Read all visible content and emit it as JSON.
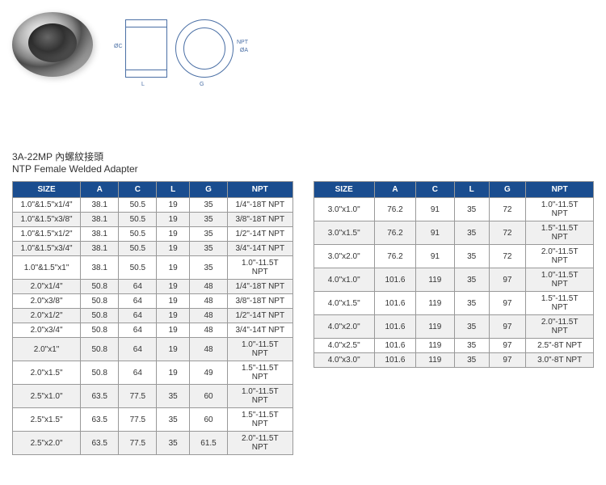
{
  "title_cn": "3A-22MP 內螺紋接頭",
  "title_en": "NTP Female Welded Adapter",
  "columns": [
    "SIZE",
    "A",
    "C",
    "L",
    "G",
    "NPT"
  ],
  "table1": {
    "rows": [
      [
        "1.0\"&1.5\"x1/4\"",
        "38.1",
        "50.5",
        "19",
        "35",
        "1/4\"-18T NPT"
      ],
      [
        "1.0\"&1.5\"x3/8\"",
        "38.1",
        "50.5",
        "19",
        "35",
        "3/8\"-18T NPT"
      ],
      [
        "1.0\"&1.5\"x1/2\"",
        "38.1",
        "50.5",
        "19",
        "35",
        "1/2\"-14T NPT"
      ],
      [
        "1.0\"&1.5\"x3/4\"",
        "38.1",
        "50.5",
        "19",
        "35",
        "3/4\"-14T NPT"
      ],
      [
        "1.0\"&1.5\"x1\"",
        "38.1",
        "50.5",
        "19",
        "35",
        "1.0\"-11.5T NPT"
      ],
      [
        "2.0\"x1/4\"",
        "50.8",
        "64",
        "19",
        "48",
        "1/4\"-18T NPT"
      ],
      [
        "2.0\"x3/8\"",
        "50.8",
        "64",
        "19",
        "48",
        "3/8\"-18T NPT"
      ],
      [
        "2.0\"x1/2\"",
        "50.8",
        "64",
        "19",
        "48",
        "1/2\"-14T NPT"
      ],
      [
        "2.0\"x3/4\"",
        "50.8",
        "64",
        "19",
        "48",
        "3/4\"-14T NPT"
      ],
      [
        "2.0\"x1\"",
        "50.8",
        "64",
        "19",
        "48",
        "1.0\"-11.5T NPT"
      ],
      [
        "2.0\"x1.5\"",
        "50.8",
        "64",
        "19",
        "49",
        "1.5\"-11.5T NPT"
      ],
      [
        "2.5\"x1.0\"",
        "63.5",
        "77.5",
        "35",
        "60",
        "1.0\"-11.5T NPT"
      ],
      [
        "2.5\"x1.5\"",
        "63.5",
        "77.5",
        "35",
        "60",
        "1.5\"-11.5T NPT"
      ],
      [
        "2.5\"x2.0\"",
        "63.5",
        "77.5",
        "35",
        "61.5",
        "2.0\"-11.5T NPT"
      ]
    ]
  },
  "table2": {
    "rows": [
      [
        "3.0\"x1.0\"",
        "76.2",
        "91",
        "35",
        "72",
        "1.0\"-11.5T NPT"
      ],
      [
        "3.0\"x1.5\"",
        "76.2",
        "91",
        "35",
        "72",
        "1.5\"-11.5T NPT"
      ],
      [
        "3.0\"x2.0\"",
        "76.2",
        "91",
        "35",
        "72",
        "2.0\"-11.5T NPT"
      ],
      [
        "4.0\"x1.0\"",
        "101.6",
        "119",
        "35",
        "97",
        "1.0\"-11.5T NPT"
      ],
      [
        "4.0\"x1.5\"",
        "101.6",
        "119",
        "35",
        "97",
        "1.5\"-11.5T NPT"
      ],
      [
        "4.0\"x2.0\"",
        "101.6",
        "119",
        "35",
        "97",
        "2.0\"-11.5T NPT"
      ],
      [
        "4.0\"x2.5\"",
        "101.6",
        "119",
        "35",
        "97",
        "2.5\"-8T NPT"
      ],
      [
        "4.0\"x3.0\"",
        "101.6",
        "119",
        "35",
        "97",
        "3.0\"-8T NPT"
      ]
    ]
  },
  "colors": {
    "header_bg": "#1a4d8f",
    "header_text": "#ffffff",
    "border": "#999999",
    "row_even": "#f0f0f0",
    "row_odd": "#ffffff",
    "diagram_line": "#4a6fa5"
  }
}
